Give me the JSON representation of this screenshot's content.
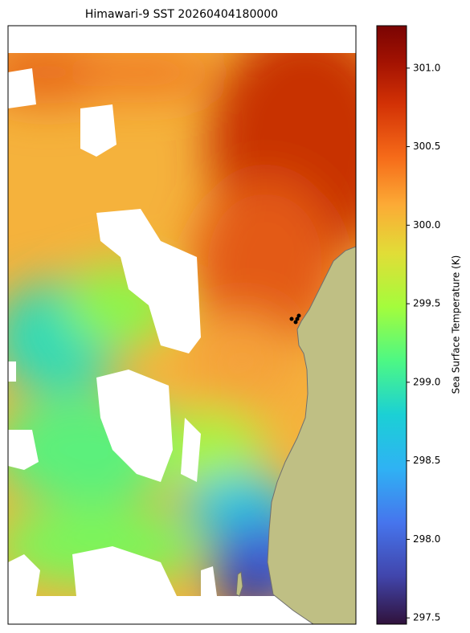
{
  "chart_data": {
    "type": "heatmap",
    "title": "Himawari-9 SST 20260404180000",
    "colorbar": {
      "label": "Sea Surface Temperature (K)",
      "clim": [
        297.46,
        301.27
      ],
      "ticks": [
        297.5,
        {
          "value": 298,
          "label": "298.0"
        },
        298.5,
        {
          "value": 299,
          "label": "299.0"
        },
        299.5,
        {
          "value": 300,
          "label": "300.0"
        },
        300.5,
        {
          "value": 301,
          "label": "301.0"
        }
      ]
    }
  }
}
